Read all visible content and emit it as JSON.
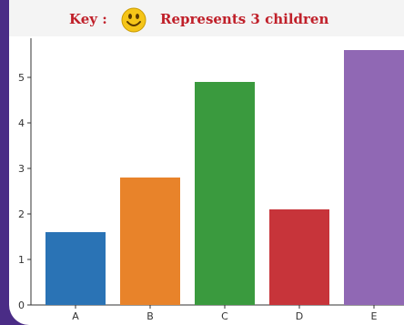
{
  "key": {
    "label": "Key :",
    "icon": "smiley-face-icon",
    "text": "Represents 3 children"
  },
  "colors": {
    "frame": "#4a2c86",
    "key_text": "#c0202a"
  },
  "chart_data": {
    "type": "bar",
    "categories": [
      "A",
      "B",
      "C",
      "D",
      "E"
    ],
    "values": [
      1.6,
      2.8,
      4.9,
      2.1,
      5.6
    ],
    "colors": [
      "#2a73b5",
      "#e8832a",
      "#3a9a3e",
      "#c7343a",
      "#9068b4"
    ],
    "yticks": [
      0,
      1,
      2,
      3,
      4,
      5
    ],
    "ylim": [
      0,
      5.6
    ],
    "title": "",
    "xlabel": "",
    "ylabel": "",
    "grid": false
  }
}
